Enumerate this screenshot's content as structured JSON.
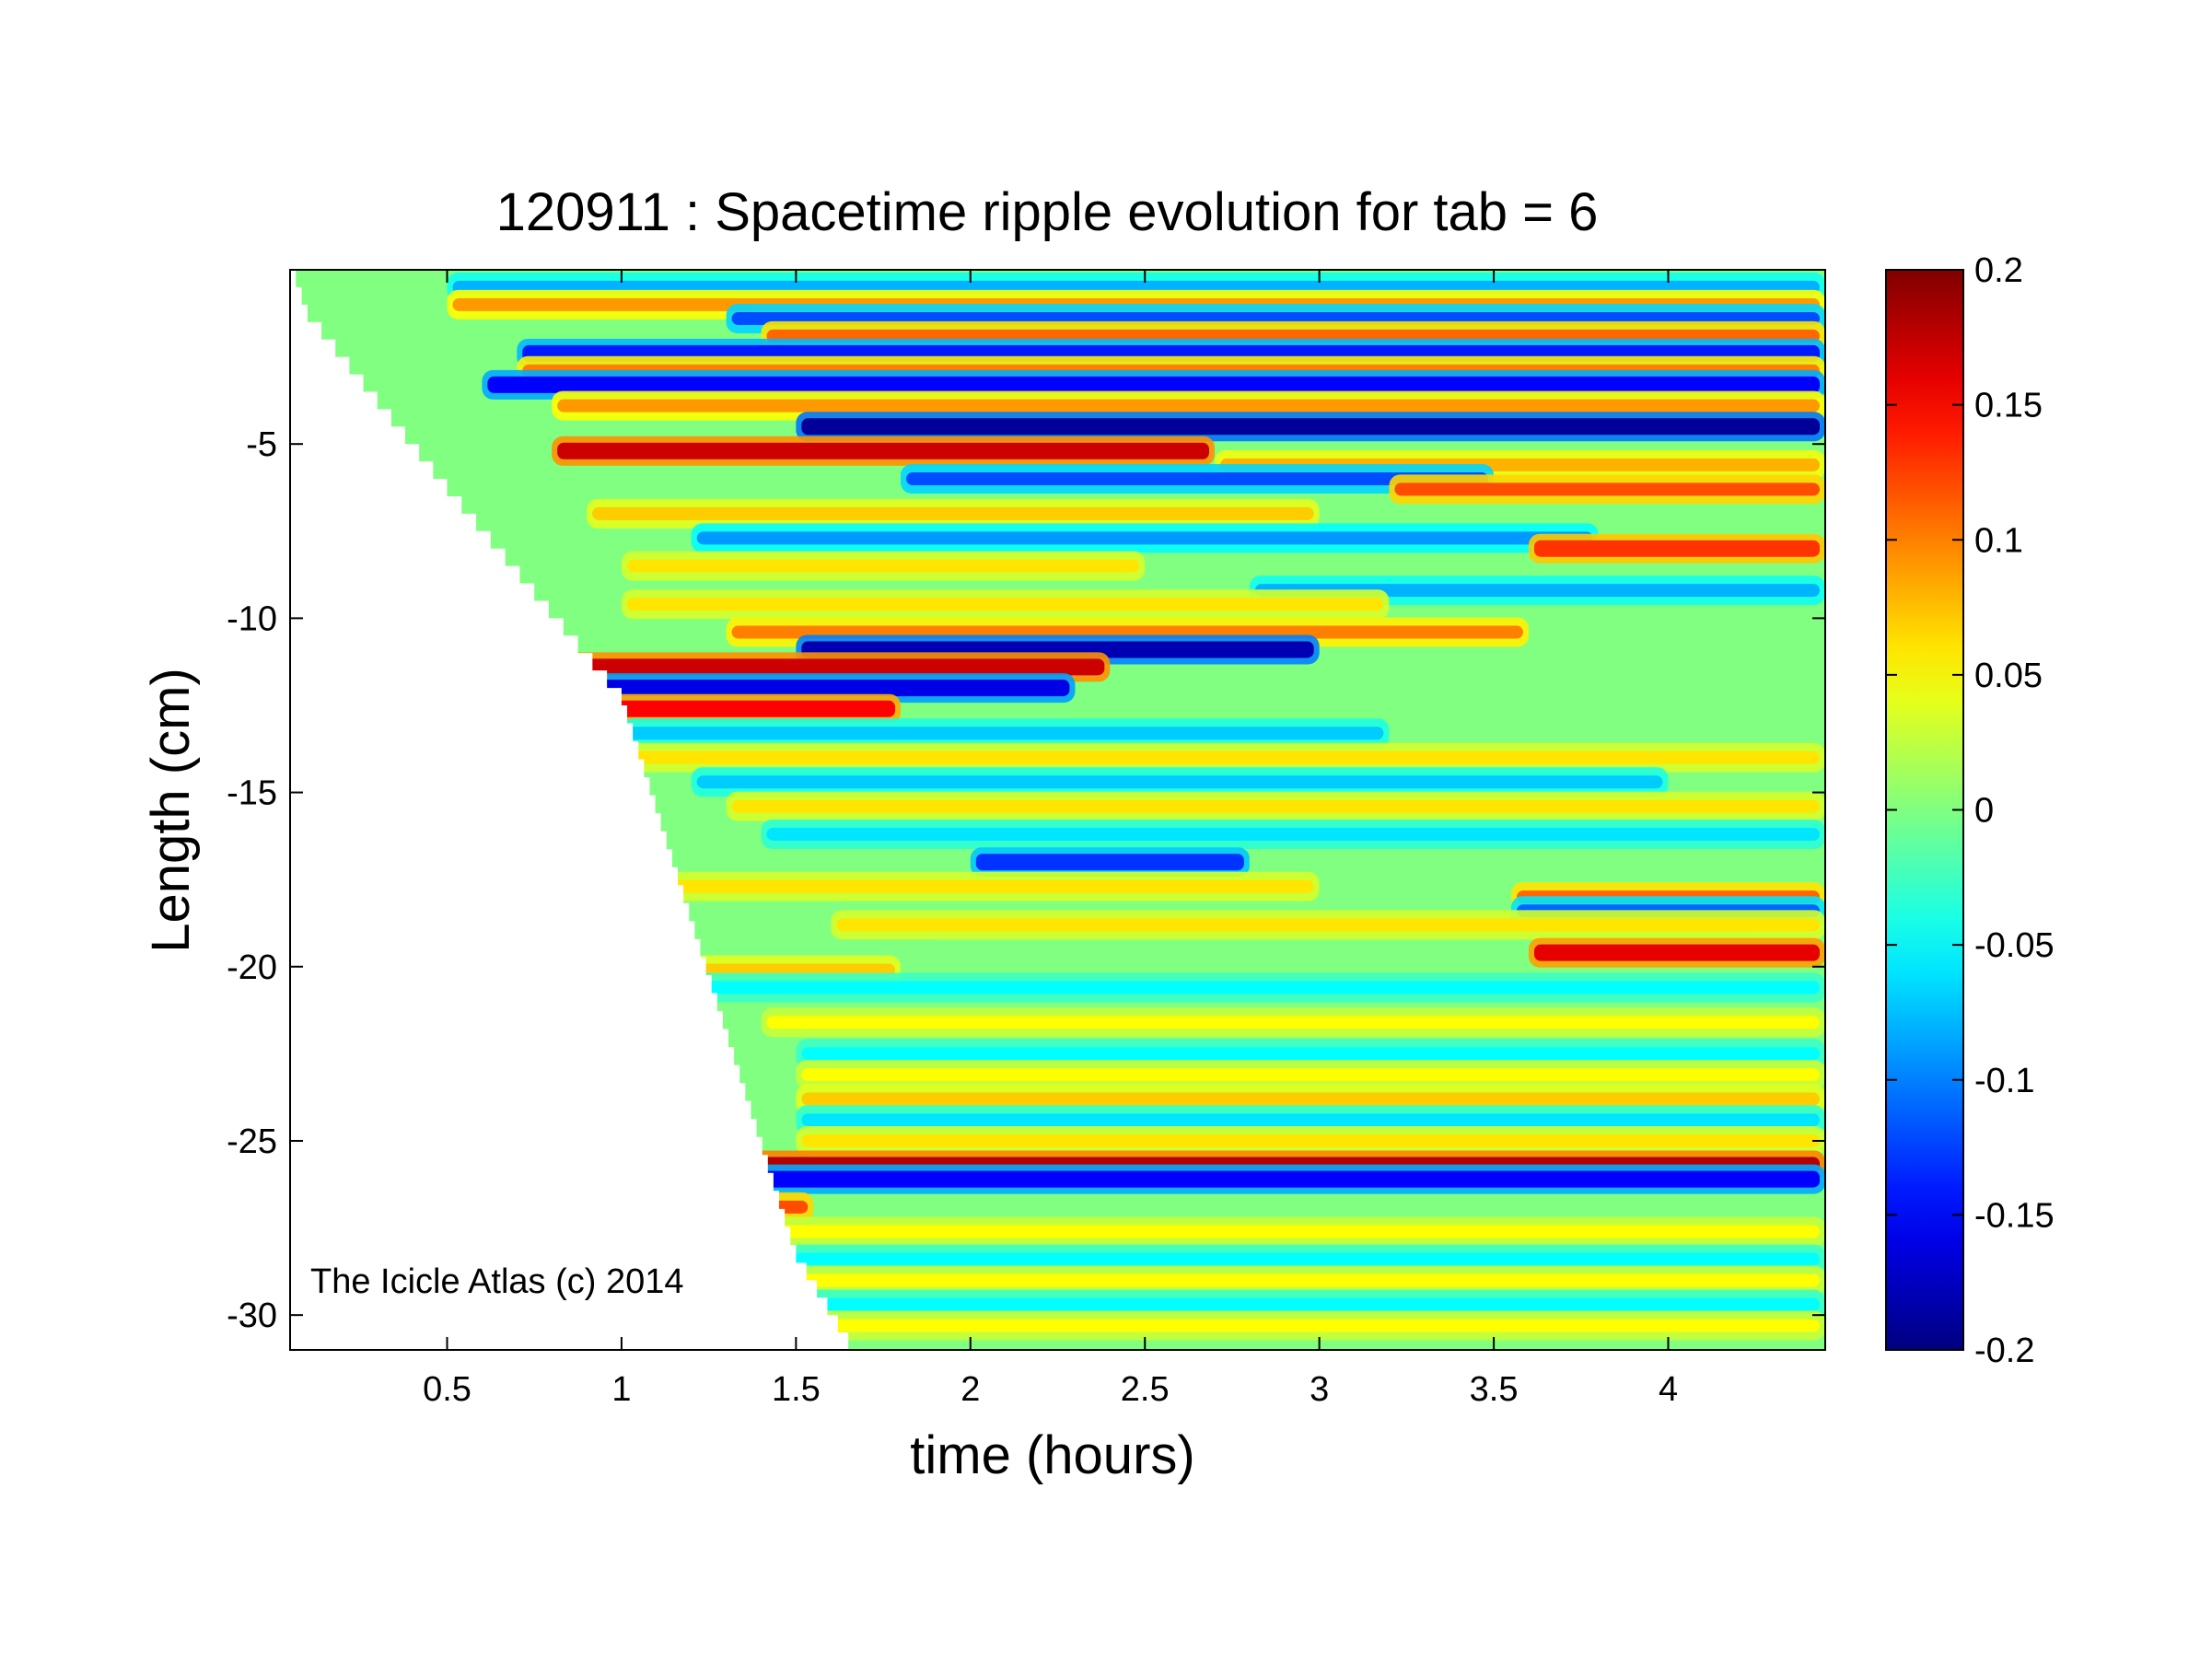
{
  "chart_data": {
    "type": "heatmap",
    "title": "120911 : Spacetime ripple evolution for tab = 6",
    "xlabel": "time (hours)",
    "ylabel": "Length (cm)",
    "xlim": [
      0.05,
      4.45
    ],
    "ylim": [
      -31,
      0
    ],
    "x_ticks": [
      0.5,
      1,
      1.5,
      2,
      2.5,
      3,
      3.5,
      4
    ],
    "x_tick_labels": [
      "0.5",
      "1",
      "1.5",
      "2",
      "2.5",
      "3",
      "3.5",
      "4"
    ],
    "y_ticks": [
      -5,
      -10,
      -15,
      -20,
      -25,
      -30
    ],
    "y_tick_labels": [
      "-5",
      "-10",
      "-15",
      "-20",
      "-25",
      "-30"
    ],
    "colormap": "jet",
    "color_range": [
      -0.2,
      0.2
    ],
    "colorbar_ticks": [
      0.2,
      0.15,
      0.1,
      0.05,
      0,
      -0.05,
      -0.1,
      -0.15,
      -0.2
    ],
    "colorbar_tick_labels": [
      "0.2",
      "0.15",
      "0.1",
      "0.05",
      "0",
      "-0.05",
      "-0.1",
      "-0.15",
      "-0.2"
    ],
    "wedge_boundary": [
      [
        0.05,
        0
      ],
      [
        0.1,
        -1.5
      ],
      [
        0.5,
        -6.5
      ],
      [
        1.0,
        -12.5
      ],
      [
        1.5,
        -28.5
      ],
      [
        1.65,
        -31
      ]
    ],
    "bands": [
      {
        "y": -0.5,
        "a": -0.08,
        "t0": 0.5,
        "t1": 4.45
      },
      {
        "y": -1.0,
        "a": 0.09,
        "t0": 0.5,
        "t1": 4.45
      },
      {
        "y": -1.4,
        "a": -0.12,
        "t0": 1.3,
        "t1": 4.45
      },
      {
        "y": -1.9,
        "a": 0.11,
        "t0": 1.4,
        "t1": 4.45
      },
      {
        "y": -2.4,
        "a": -0.14,
        "t0": 0.7,
        "t1": 4.45
      },
      {
        "y": -2.9,
        "a": 0.1,
        "t0": 0.7,
        "t1": 4.45
      },
      {
        "y": -3.3,
        "a": -0.15,
        "t0": 0.6,
        "t1": 4.45
      },
      {
        "y": -3.9,
        "a": 0.09,
        "t0": 0.8,
        "t1": 4.45
      },
      {
        "y": -4.5,
        "a": -0.19,
        "t0": 1.5,
        "t1": 4.45
      },
      {
        "y": -5.2,
        "a": 0.17,
        "t0": 0.8,
        "t1": 2.7
      },
      {
        "y": -5.6,
        "a": 0.08,
        "t0": 2.7,
        "t1": 4.45
      },
      {
        "y": -6.0,
        "a": -0.12,
        "t0": 1.8,
        "t1": 3.5
      },
      {
        "y": -6.3,
        "a": 0.12,
        "t0": 3.2,
        "t1": 4.45
      },
      {
        "y": -7.0,
        "a": 0.07,
        "t0": 0.9,
        "t1": 3.0
      },
      {
        "y": -7.7,
        "a": -0.09,
        "t0": 1.2,
        "t1": 3.8
      },
      {
        "y": -8.0,
        "a": 0.13,
        "t0": 3.6,
        "t1": 4.45
      },
      {
        "y": -8.5,
        "a": 0.06,
        "t0": 1.0,
        "t1": 2.5
      },
      {
        "y": -9.2,
        "a": -0.08,
        "t0": 2.8,
        "t1": 4.45
      },
      {
        "y": -9.6,
        "a": 0.06,
        "t0": 1.0,
        "t1": 3.2
      },
      {
        "y": -10.4,
        "a": 0.1,
        "t0": 1.3,
        "t1": 3.6
      },
      {
        "y": -10.9,
        "a": -0.18,
        "t0": 1.5,
        "t1": 3.0
      },
      {
        "y": -11.4,
        "a": 0.17,
        "t0": 0.7,
        "t1": 2.4
      },
      {
        "y": -12.0,
        "a": -0.16,
        "t0": 0.7,
        "t1": 2.3
      },
      {
        "y": -12.6,
        "a": 0.15,
        "t0": 0.8,
        "t1": 1.8
      },
      {
        "y": -13.3,
        "a": -0.07,
        "t0": 1.0,
        "t1": 3.2
      },
      {
        "y": -14.0,
        "a": 0.06,
        "t0": 1.0,
        "t1": 4.45
      },
      {
        "y": -14.7,
        "a": -0.07,
        "t0": 1.2,
        "t1": 4.0
      },
      {
        "y": -15.4,
        "a": 0.06,
        "t0": 1.3,
        "t1": 4.45
      },
      {
        "y": -16.2,
        "a": -0.06,
        "t0": 1.4,
        "t1": 4.45
      },
      {
        "y": -17.0,
        "a": -0.13,
        "t0": 2.0,
        "t1": 2.8
      },
      {
        "y": -17.7,
        "a": 0.06,
        "t0": 1.0,
        "t1": 3.0
      },
      {
        "y": -18.0,
        "a": 0.11,
        "t0": 3.55,
        "t1": 4.45
      },
      {
        "y": -18.4,
        "a": -0.11,
        "t0": 3.55,
        "t1": 4.45
      },
      {
        "y": -18.8,
        "a": 0.06,
        "t0": 1.6,
        "t1": 4.45
      },
      {
        "y": -19.6,
        "a": 0.16,
        "t0": 3.6,
        "t1": 4.45
      },
      {
        "y": -20.1,
        "a": 0.07,
        "t0": 1.2,
        "t1": 1.8
      },
      {
        "y": -20.6,
        "a": -0.05,
        "t0": 1.2,
        "t1": 4.45
      },
      {
        "y": -21.6,
        "a": 0.05,
        "t0": 1.4,
        "t1": 4.45
      },
      {
        "y": -22.5,
        "a": -0.05,
        "t0": 1.5,
        "t1": 4.45
      },
      {
        "y": -23.1,
        "a": 0.05,
        "t0": 1.5,
        "t1": 4.45
      },
      {
        "y": -23.8,
        "a": 0.07,
        "t0": 1.5,
        "t1": 4.45
      },
      {
        "y": -24.4,
        "a": -0.06,
        "t0": 1.5,
        "t1": 4.45
      },
      {
        "y": -25.0,
        "a": 0.06,
        "t0": 1.5,
        "t1": 4.45
      },
      {
        "y": -25.7,
        "a": 0.18,
        "t0": 1.3,
        "t1": 4.45
      },
      {
        "y": -26.1,
        "a": -0.15,
        "t0": 1.3,
        "t1": 4.45
      },
      {
        "y": -26.9,
        "a": 0.12,
        "t0": 1.35,
        "t1": 1.55
      },
      {
        "y": -27.6,
        "a": 0.05,
        "t0": 1.4,
        "t1": 4.45
      },
      {
        "y": -28.4,
        "a": -0.05,
        "t0": 1.45,
        "t1": 4.45
      },
      {
        "y": -29.0,
        "a": 0.05,
        "t0": 1.5,
        "t1": 4.45
      },
      {
        "y": -29.7,
        "a": -0.05,
        "t0": 1.5,
        "t1": 4.45
      },
      {
        "y": -30.3,
        "a": 0.05,
        "t0": 1.55,
        "t1": 4.45
      }
    ]
  },
  "watermark": "The Icicle Atlas (c) 2014"
}
